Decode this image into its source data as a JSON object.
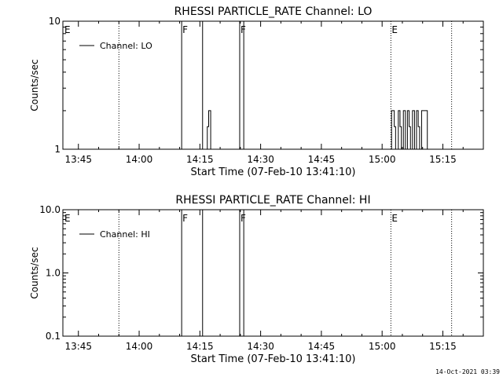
{
  "chart_data": [
    {
      "type": "line",
      "title": "RHESSI PARTICLE_RATE Channel: LO",
      "xlabel": "Start Time (07-Feb-10 13:41:10)",
      "ylabel": "Counts/sec",
      "yscale": "log",
      "ylim": [
        1,
        10
      ],
      "xlim": [
        "13:41:10",
        "15:25:00"
      ],
      "yticks": [
        1,
        10
      ],
      "ytick_labels": [
        "1",
        "10"
      ],
      "xtick_labels": [
        "13:45",
        "14:00",
        "14:15",
        "14:30",
        "14:45",
        "15:00",
        "15:15"
      ],
      "legend": {
        "position": "top-left",
        "entries": [
          "Channel: LO"
        ]
      },
      "grid": false,
      "markers": [
        {
          "time": "13:41:10",
          "label": "E",
          "style": "none"
        },
        {
          "time": "13:55:00",
          "label": "",
          "style": "dotted"
        },
        {
          "time": "14:10:30",
          "label": "F",
          "style": "solid"
        },
        {
          "time": "14:15:40",
          "label": "",
          "style": "solid"
        },
        {
          "time": "14:24:50",
          "label": "F",
          "style": "solid"
        },
        {
          "time": "14:25:50",
          "label": "",
          "style": "solid"
        },
        {
          "time": "15:02:10",
          "label": "E",
          "style": "dotted"
        },
        {
          "time": "15:17:10",
          "label": "",
          "style": "dotted"
        }
      ],
      "series": [
        {
          "name": "Channel: LO",
          "points": [
            [
              "14:16:50",
              1
            ],
            [
              "14:16:50",
              1.5
            ],
            [
              "14:17:10",
              1.5
            ],
            [
              "14:17:10",
              2
            ],
            [
              "14:17:40",
              2
            ],
            [
              "14:17:40",
              1
            ],
            [
              "15:02:20",
              1
            ],
            [
              "15:02:20",
              2
            ],
            [
              "15:03:00",
              2
            ],
            [
              "15:03:00",
              1.5
            ],
            [
              "15:03:20",
              1.5
            ],
            [
              "15:03:20",
              1
            ],
            [
              "15:04:00",
              1
            ],
            [
              "15:04:00",
              2
            ],
            [
              "15:04:25",
              2
            ],
            [
              "15:04:25",
              1.5
            ],
            [
              "15:04:45",
              1.5
            ],
            [
              "15:04:45",
              1
            ],
            [
              "15:05:15",
              1
            ],
            [
              "15:05:15",
              2
            ],
            [
              "15:05:45",
              2
            ],
            [
              "15:05:45",
              1
            ],
            [
              "15:06:15",
              1
            ],
            [
              "15:06:15",
              2
            ],
            [
              "15:06:40",
              2
            ],
            [
              "15:06:40",
              1.5
            ],
            [
              "15:07:00",
              1.5
            ],
            [
              "15:07:00",
              1
            ],
            [
              "15:07:30",
              1
            ],
            [
              "15:07:30",
              2
            ],
            [
              "15:08:00",
              2
            ],
            [
              "15:08:00",
              1
            ],
            [
              "15:08:30",
              1
            ],
            [
              "15:08:30",
              2
            ],
            [
              "15:08:55",
              2
            ],
            [
              "15:08:55",
              1.5
            ],
            [
              "15:09:15",
              1.5
            ],
            [
              "15:09:15",
              1
            ],
            [
              "15:09:45",
              1
            ],
            [
              "15:09:45",
              2
            ],
            [
              "15:11:10",
              2
            ],
            [
              "15:11:10",
              1
            ]
          ]
        }
      ]
    },
    {
      "type": "line",
      "title": "RHESSI PARTICLE_RATE Channel: HI",
      "xlabel": "Start Time (07-Feb-10 13:41:10)",
      "ylabel": "Counts/sec",
      "yscale": "log",
      "ylim": [
        0.1,
        10
      ],
      "xlim": [
        "13:41:10",
        "15:25:00"
      ],
      "yticks": [
        0.1,
        1,
        10
      ],
      "ytick_labels": [
        "0.1",
        "1.0",
        "10.0"
      ],
      "xtick_labels": [
        "13:45",
        "14:00",
        "14:15",
        "14:30",
        "14:45",
        "15:00",
        "15:15"
      ],
      "legend": {
        "position": "top-left",
        "entries": [
          "Channel: HI"
        ]
      },
      "grid": false,
      "markers": [
        {
          "time": "13:41:10",
          "label": "E",
          "style": "none"
        },
        {
          "time": "13:55:00",
          "label": "",
          "style": "dotted"
        },
        {
          "time": "14:10:30",
          "label": "F",
          "style": "solid"
        },
        {
          "time": "14:15:40",
          "label": "",
          "style": "solid"
        },
        {
          "time": "14:24:50",
          "label": "F",
          "style": "solid"
        },
        {
          "time": "14:25:50",
          "label": "",
          "style": "solid"
        },
        {
          "time": "15:02:10",
          "label": "E",
          "style": "dotted"
        },
        {
          "time": "15:17:10",
          "label": "",
          "style": "dotted"
        }
      ],
      "series": [
        {
          "name": "Channel: HI",
          "points": []
        }
      ]
    }
  ],
  "footer": {
    "timestamp": "14-Oct-2021 03:39"
  }
}
